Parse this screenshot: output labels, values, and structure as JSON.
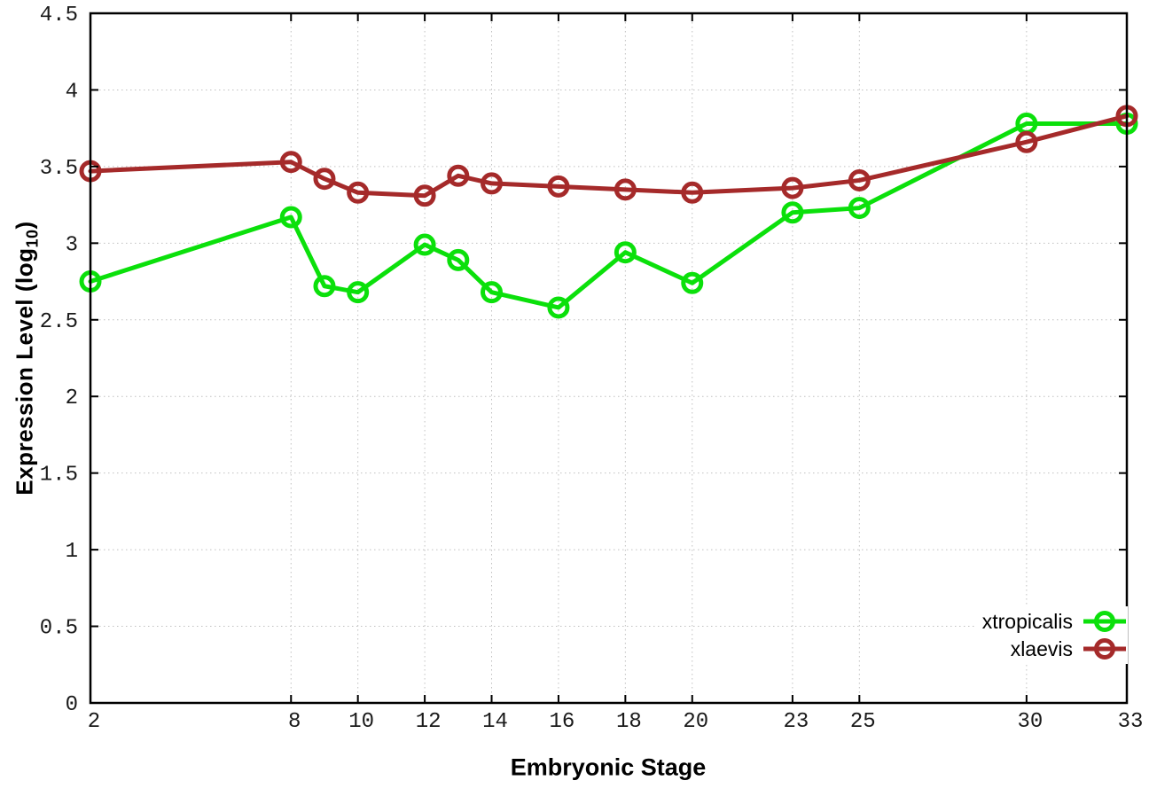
{
  "chart_data": {
    "type": "line",
    "title": "",
    "xlabel": "Embryonic Stage",
    "ylabel": "Expression Level (log10)",
    "ylabel_parts": {
      "main": "Expression Level (log",
      "sub": "10",
      "close": ")"
    },
    "xlim": [
      2,
      33
    ],
    "ylim": [
      0,
      4.5
    ],
    "grid": "dotted",
    "legend_position": "bottom-right",
    "x_ticks": {
      "values": [
        2,
        8,
        10,
        12,
        14,
        16,
        18,
        20,
        23,
        25,
        30,
        33
      ],
      "labels": [
        "2",
        "8",
        "10",
        "12",
        "14",
        "16",
        "18",
        "20",
        "23",
        "25",
        "30",
        "33"
      ]
    },
    "y_ticks": {
      "values": [
        0,
        0.5,
        1,
        1.5,
        2,
        2.5,
        3,
        3.5,
        4,
        4.5
      ],
      "labels": [
        "0",
        "0.5",
        "1",
        "1.5",
        "2",
        "2.5",
        "3",
        "3.5",
        "4",
        "4.5"
      ]
    },
    "x": [
      2,
      8,
      9,
      10,
      12,
      13,
      14,
      16,
      18,
      20,
      23,
      25,
      30,
      33
    ],
    "series": [
      {
        "name": "xtropicalis",
        "color": "#0be00b",
        "values": [
          2.75,
          3.17,
          2.72,
          2.68,
          2.99,
          2.89,
          2.68,
          2.58,
          2.94,
          2.74,
          3.2,
          3.23,
          3.78,
          3.78
        ]
      },
      {
        "name": "xlaevis",
        "color": "#a52a2a",
        "values": [
          3.47,
          3.53,
          3.42,
          3.33,
          3.31,
          3.44,
          3.39,
          3.37,
          3.35,
          3.33,
          3.36,
          3.41,
          3.66,
          3.83
        ]
      }
    ],
    "colors": {
      "grid": "#c0c0c0",
      "border": "#000000",
      "tick_text": "#1a1a1a"
    }
  }
}
